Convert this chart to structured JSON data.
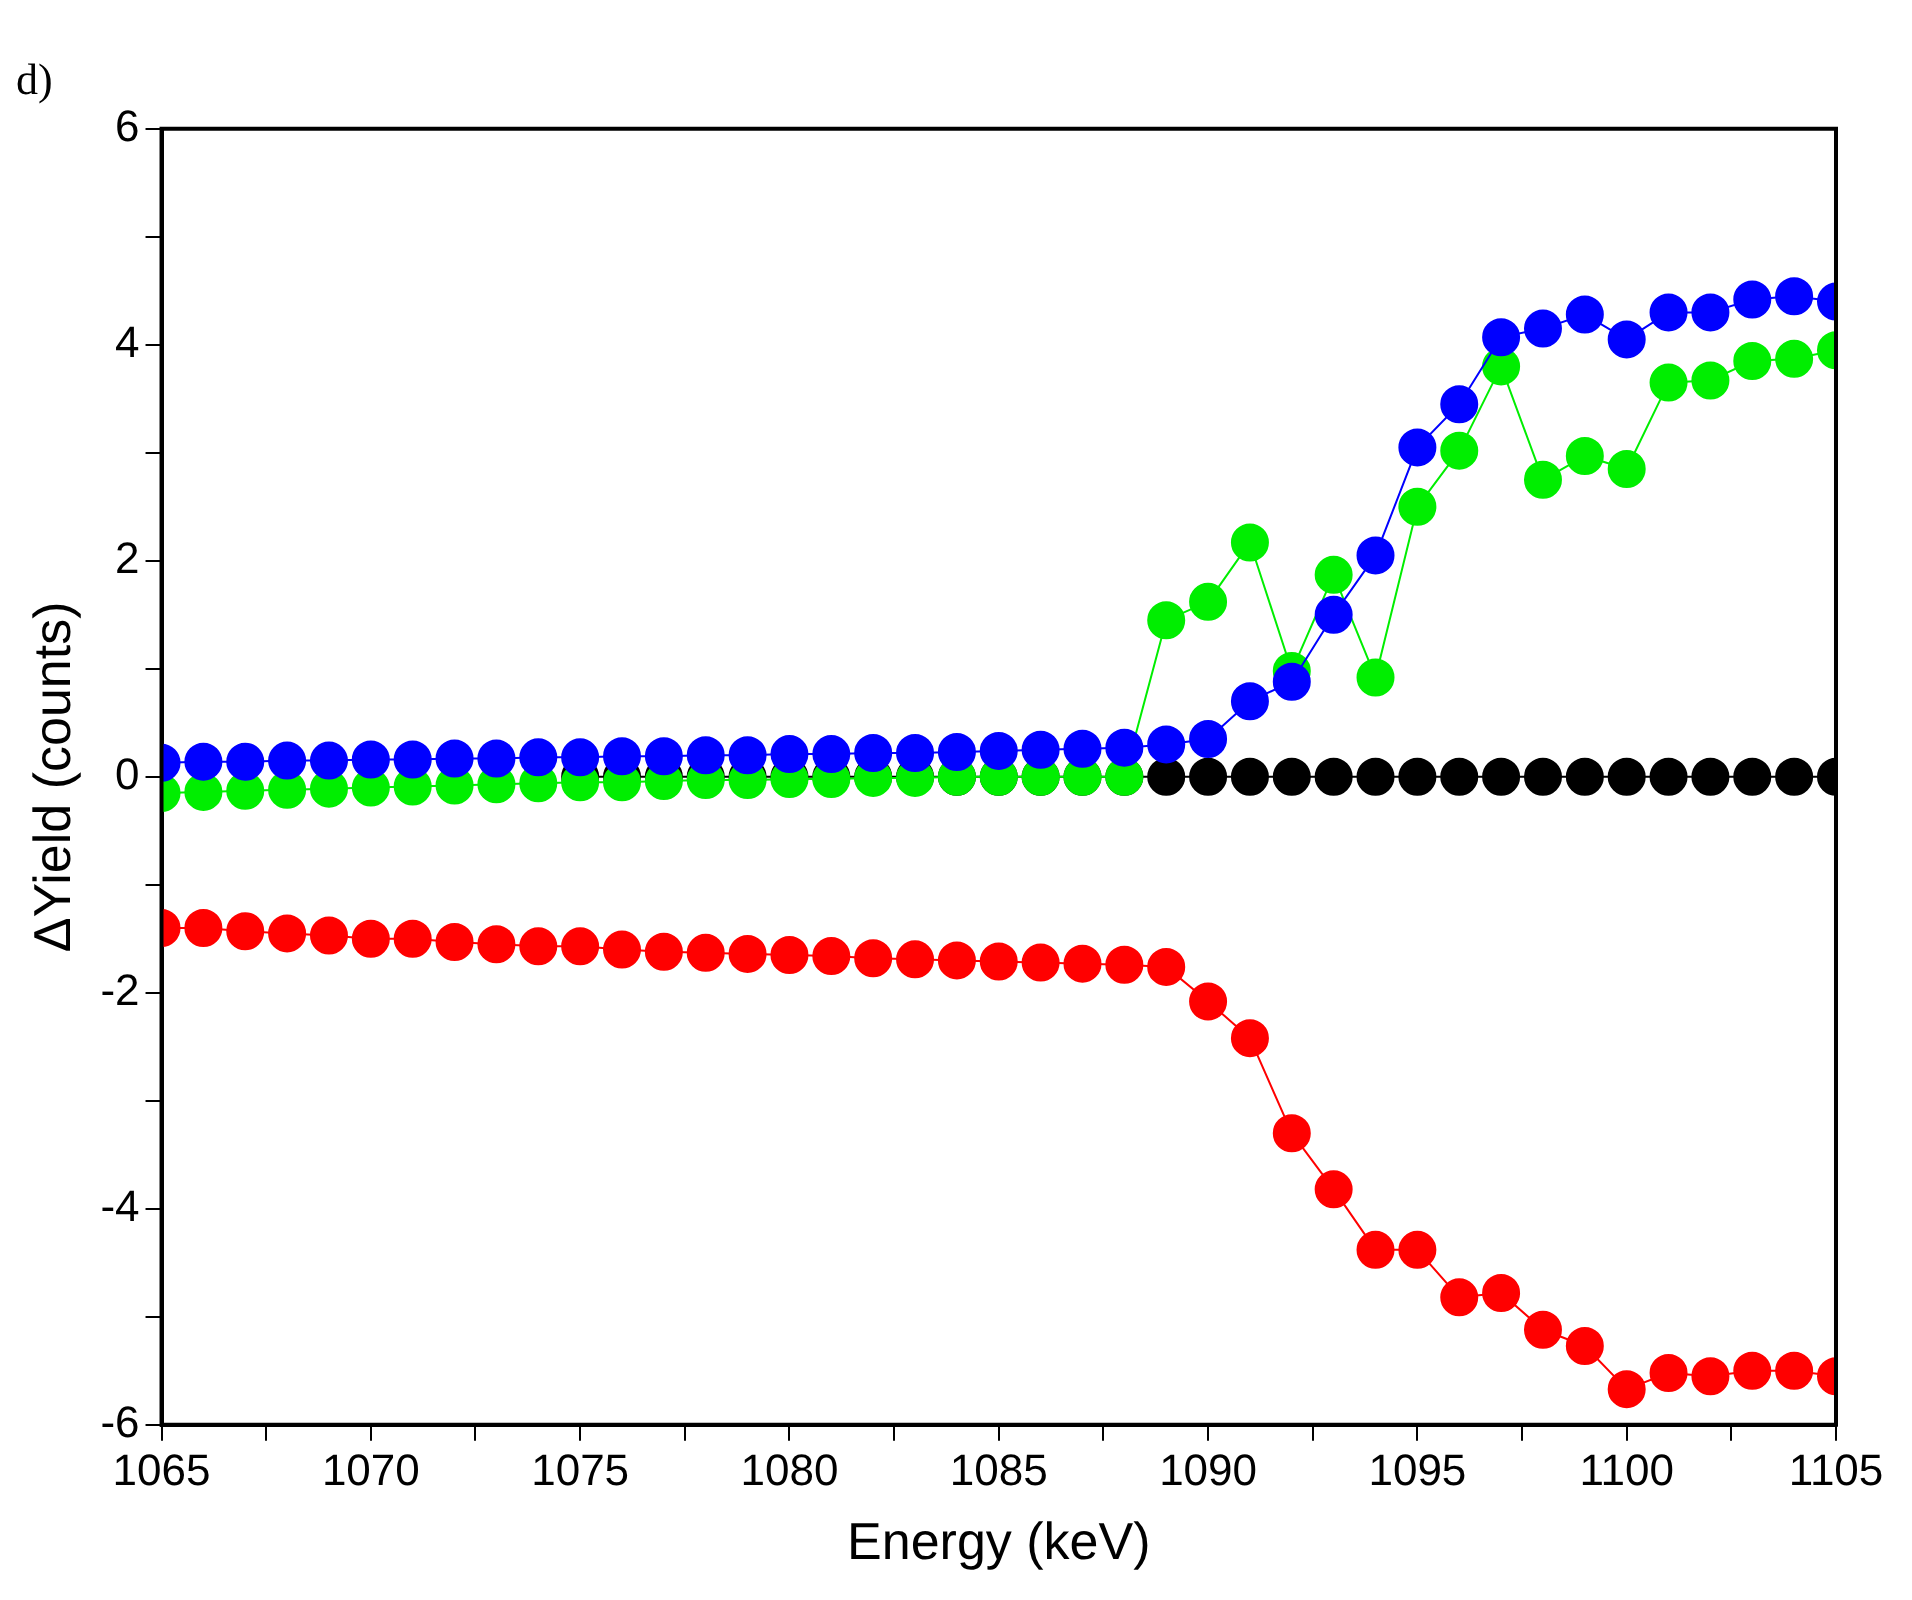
{
  "chart_data": {
    "type": "line",
    "title": "d)",
    "xlabel": "Energy (keV)",
    "ylabel": "ΔYield (counts)",
    "x": [
      1065,
      1066,
      1067,
      1068,
      1069,
      1070,
      1071,
      1072,
      1073,
      1074,
      1075,
      1076,
      1077,
      1078,
      1079,
      1080,
      1081,
      1082,
      1083,
      1084,
      1085,
      1086,
      1087,
      1088,
      1089,
      1090,
      1091,
      1092,
      1093,
      1094,
      1095,
      1096,
      1097,
      1098,
      1099,
      1100,
      1101,
      1102,
      1103,
      1104,
      1105
    ],
    "series": [
      {
        "color": "#000000",
        "values": [
          null,
          null,
          null,
          null,
          null,
          null,
          null,
          null,
          null,
          null,
          0,
          0,
          0,
          0,
          0,
          0,
          0,
          0,
          0,
          0,
          0,
          0,
          0,
          0,
          0,
          0,
          0,
          0,
          0,
          0,
          0,
          0,
          0,
          0,
          0,
          0,
          0,
          0,
          0,
          0,
          0
        ]
      },
      {
        "color": "#ff0000",
        "values": [
          -1.4,
          -1.4,
          -1.43,
          -1.45,
          -1.47,
          -1.5,
          -1.5,
          -1.53,
          -1.55,
          -1.57,
          -1.57,
          -1.6,
          -1.62,
          -1.63,
          -1.64,
          -1.65,
          -1.66,
          -1.68,
          -1.69,
          -1.7,
          -1.71,
          -1.72,
          -1.73,
          -1.74,
          -1.76,
          -2.08,
          -2.42,
          -3.3,
          -3.82,
          -4.38,
          -4.38,
          -4.82,
          -4.78,
          -5.12,
          -5.27,
          -5.67,
          -5.52,
          -5.55,
          -5.5,
          -5.5,
          -5.55
        ]
      },
      {
        "color": "#00ee00",
        "values": [
          -0.15,
          -0.14,
          -0.13,
          -0.12,
          -0.11,
          -0.1,
          -0.09,
          -0.08,
          -0.07,
          -0.06,
          -0.05,
          -0.05,
          -0.04,
          -0.03,
          -0.03,
          -0.02,
          -0.02,
          -0.01,
          -0.01,
          0,
          0,
          0,
          0,
          0,
          1.45,
          1.62,
          2.17,
          0.98,
          1.87,
          0.92,
          2.5,
          3.02,
          3.8,
          2.75,
          2.97,
          2.85,
          3.65,
          3.67,
          3.85,
          3.87,
          3.95
        ]
      },
      {
        "color": "#0000ff",
        "values": [
          0.13,
          0.14,
          0.14,
          0.15,
          0.15,
          0.16,
          0.16,
          0.17,
          0.17,
          0.18,
          0.18,
          0.19,
          0.19,
          0.2,
          0.2,
          0.21,
          0.21,
          0.22,
          0.22,
          0.23,
          0.24,
          0.25,
          0.26,
          0.27,
          0.3,
          0.35,
          0.7,
          0.88,
          1.5,
          2.05,
          3.05,
          3.45,
          4.07,
          4.15,
          4.28,
          4.05,
          4.3,
          4.3,
          4.42,
          4.45,
          4.4
        ]
      }
    ],
    "xlim": [
      1065,
      1105
    ],
    "xticks": [
      1065,
      {
        "value": 1067.5,
        "label": null
      },
      1070,
      {
        "value": 1072.5,
        "label": null
      },
      1075,
      {
        "value": 1077.5,
        "label": null
      },
      1080,
      {
        "value": 1082.5,
        "label": null
      },
      1085,
      {
        "value": 1087.5,
        "label": null
      },
      1090,
      {
        "value": 1092.5,
        "label": null
      },
      1095,
      {
        "value": 1097.5,
        "label": null
      },
      1100,
      {
        "value": 1102.5,
        "label": null
      },
      1105
    ],
    "ylim": [
      -6,
      6
    ],
    "yticks": [
      -6,
      {
        "value": -5,
        "label": null
      },
      -4,
      {
        "value": -3,
        "label": null
      },
      -2,
      {
        "value": -1,
        "label": null
      },
      0,
      {
        "value": 1,
        "label": null
      },
      2,
      {
        "value": 3,
        "label": null
      },
      4,
      {
        "value": 5,
        "label": null
      },
      6
    ],
    "marker": "circle",
    "line_style": "solid",
    "grid": false,
    "legend": false
  }
}
